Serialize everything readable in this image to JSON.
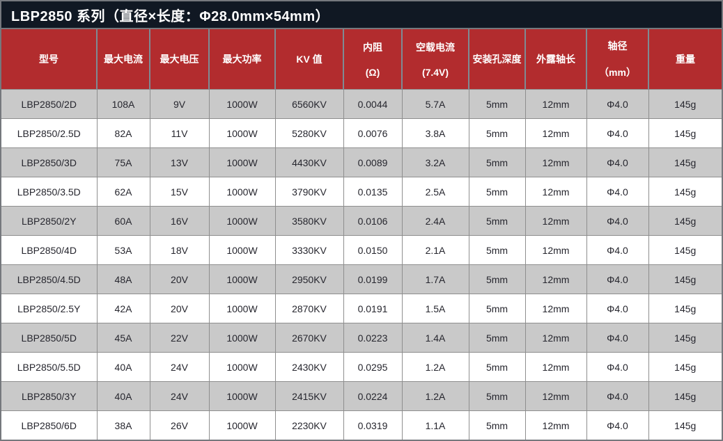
{
  "title": "LBP2850 系列（直径×长度：Φ28.0mm×54mm）",
  "colors": {
    "title_bg": "#101823",
    "header_bg": "#b22c2e",
    "header_divider": "#7e8b94",
    "alt_row_bg": "#c9c9c9",
    "frame": "#75787d",
    "cell_border": "#8e8e8e",
    "cell_text": "#26262e"
  },
  "table": {
    "columns": [
      {
        "label": "型号",
        "sub": ""
      },
      {
        "label": "最大电流",
        "sub": ""
      },
      {
        "label": "最大电压",
        "sub": ""
      },
      {
        "label": "最大功率",
        "sub": ""
      },
      {
        "label": "KV 值",
        "sub": ""
      },
      {
        "label": "内阻",
        "sub": "(Ω)"
      },
      {
        "label": "空载电流",
        "sub": "(7.4V)"
      },
      {
        "label": "安装孔深度",
        "sub": ""
      },
      {
        "label": "外露轴长",
        "sub": ""
      },
      {
        "label": "轴径",
        "sub": "（mm）"
      },
      {
        "label": "重量",
        "sub": ""
      }
    ],
    "rows": [
      [
        "LBP2850/2D",
        "108A",
        "9V",
        "1000W",
        "6560KV",
        "0.0044",
        "5.7A",
        "5mm",
        "12mm",
        "Φ4.0",
        "145g"
      ],
      [
        "LBP2850/2.5D",
        "82A",
        "11V",
        "1000W",
        "5280KV",
        "0.0076",
        "3.8A",
        "5mm",
        "12mm",
        "Φ4.0",
        "145g"
      ],
      [
        "LBP2850/3D",
        "75A",
        "13V",
        "1000W",
        "4430KV",
        "0.0089",
        "3.2A",
        "5mm",
        "12mm",
        "Φ4.0",
        "145g"
      ],
      [
        "LBP2850/3.5D",
        "62A",
        "15V",
        "1000W",
        "3790KV",
        "0.0135",
        "2.5A",
        "5mm",
        "12mm",
        "Φ4.0",
        "145g"
      ],
      [
        "LBP2850/2Y",
        "60A",
        "16V",
        "1000W",
        "3580KV",
        "0.0106",
        "2.4A",
        "5mm",
        "12mm",
        "Φ4.0",
        "145g"
      ],
      [
        "LBP2850/4D",
        "53A",
        "18V",
        "1000W",
        "3330KV",
        "0.0150",
        "2.1A",
        "5mm",
        "12mm",
        "Φ4.0",
        "145g"
      ],
      [
        "LBP2850/4.5D",
        "48A",
        "20V",
        "1000W",
        "2950KV",
        "0.0199",
        "1.7A",
        "5mm",
        "12mm",
        "Φ4.0",
        "145g"
      ],
      [
        "LBP2850/2.5Y",
        "42A",
        "20V",
        "1000W",
        "2870KV",
        "0.0191",
        "1.5A",
        "5mm",
        "12mm",
        "Φ4.0",
        "145g"
      ],
      [
        "LBP2850/5D",
        "45A",
        "22V",
        "1000W",
        "2670KV",
        "0.0223",
        "1.4A",
        "5mm",
        "12mm",
        "Φ4.0",
        "145g"
      ],
      [
        "LBP2850/5.5D",
        "40A",
        "24V",
        "1000W",
        "2430KV",
        "0.0295",
        "1.2A",
        "5mm",
        "12mm",
        "Φ4.0",
        "145g"
      ],
      [
        "LBP2850/3Y",
        "40A",
        "24V",
        "1000W",
        "2415KV",
        "0.0224",
        "1.2A",
        "5mm",
        "12mm",
        "Φ4.0",
        "145g"
      ],
      [
        "LBP2850/6D",
        "38A",
        "26V",
        "1000W",
        "2230KV",
        "0.0319",
        "1.1A",
        "5mm",
        "12mm",
        "Φ4.0",
        "145g"
      ]
    ]
  }
}
